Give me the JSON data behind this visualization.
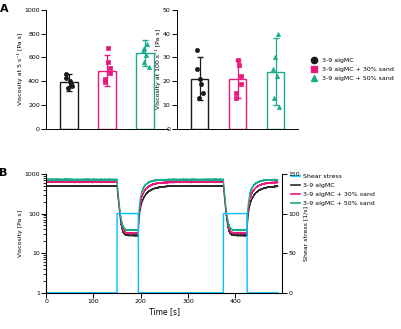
{
  "panel_A_left": {
    "ylabel": "Viscosity at 5 s⁻¹ [Pa s]",
    "ylim": [
      0,
      1000
    ],
    "yticks": [
      0,
      200,
      400,
      600,
      800,
      1000
    ],
    "bars": [
      390,
      490,
      635
    ],
    "errors": [
      70,
      130,
      110
    ],
    "colors": [
      "#1a1a1a",
      "#e8197d",
      "#1aab8a"
    ],
    "points": [
      [
        340,
        360,
        380,
        400,
        430,
        460
      ],
      [
        390,
        420,
        470,
        510,
        560,
        680
      ],
      [
        520,
        560,
        620,
        650,
        680,
        710
      ]
    ]
  },
  "panel_A_right": {
    "ylabel": "Viscosity at 100 s⁻¹ [Pa s]",
    "ylim": [
      0,
      50
    ],
    "yticks": [
      0,
      10,
      20,
      30,
      40,
      50
    ],
    "bars": [
      21,
      21,
      24
    ],
    "errors": [
      9,
      8,
      14
    ],
    "colors": [
      "#1a1a1a",
      "#e8197d",
      "#1aab8a"
    ],
    "points": [
      [
        13,
        15,
        19,
        21,
        25,
        33
      ],
      [
        13,
        15,
        19,
        22,
        27,
        29
      ],
      [
        9,
        13,
        22,
        25,
        30,
        40
      ]
    ]
  },
  "legend_A": {
    "labels": [
      "3-9 algMC",
      "3-9 algMC + 30% sand",
      "3-9 algMC + 50% sand"
    ],
    "colors": [
      "#1a1a1a",
      "#e8197d",
      "#1aab8a"
    ],
    "markers": [
      "o",
      "s",
      "^"
    ]
  },
  "panel_B": {
    "xlabel": "Time [s]",
    "ylabel": "Viscosity [Pa s]",
    "ylabel2": "Shear stress [1/s]",
    "xlim": [
      0,
      500
    ],
    "ylim": [
      1,
      1000
    ],
    "ylim2": [
      0,
      150
    ],
    "yticks2": [
      0,
      50,
      100,
      150
    ],
    "xticks": [
      0,
      100,
      200,
      300,
      400
    ],
    "shear_stress_color": "#00bfff",
    "algmc_color": "#2d2d2d",
    "algmc_30_color": "#e8197d",
    "algmc_50_color": "#1aab8a",
    "t_high1_start": 150,
    "t_high1_end": 195,
    "t_high2_start": 375,
    "t_high2_end": 425
  },
  "legend_B": {
    "labels": [
      "Shear stress",
      "3-9 algMC",
      "3-9 algMC + 30% sand",
      "3-9 algMC + 50% sand"
    ],
    "colors": [
      "#00bfff",
      "#2d2d2d",
      "#e8197d",
      "#1aab8a"
    ]
  }
}
